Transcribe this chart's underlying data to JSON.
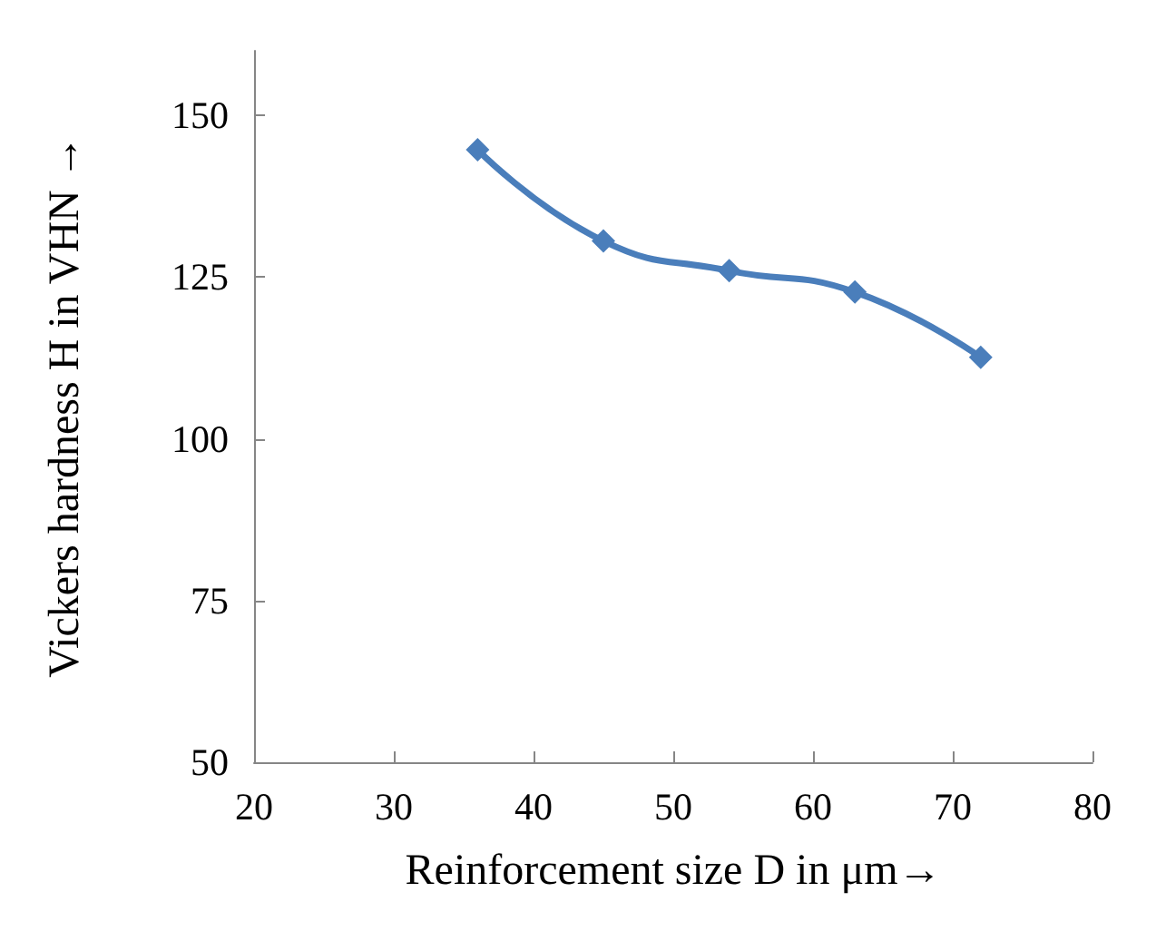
{
  "chart_data": {
    "type": "line",
    "xlabel": "Reinforcement size D in μm→",
    "ylabel": "Vickers hardness H in VHN →",
    "x": [
      36,
      45,
      54,
      63,
      72
    ],
    "series": [
      {
        "color": "#4a7ebb",
        "values": [
          144.7,
          130.6,
          126,
          122.7,
          112.6
        ]
      }
    ],
    "xlim": [
      20,
      80
    ],
    "xticks": [
      20,
      30,
      40,
      50,
      60,
      70,
      80
    ],
    "ylim": [
      50,
      160
    ],
    "yticks": [
      50,
      75,
      100,
      125,
      150
    ],
    "grid": false,
    "marker": "diamond",
    "line_style": "solid"
  }
}
